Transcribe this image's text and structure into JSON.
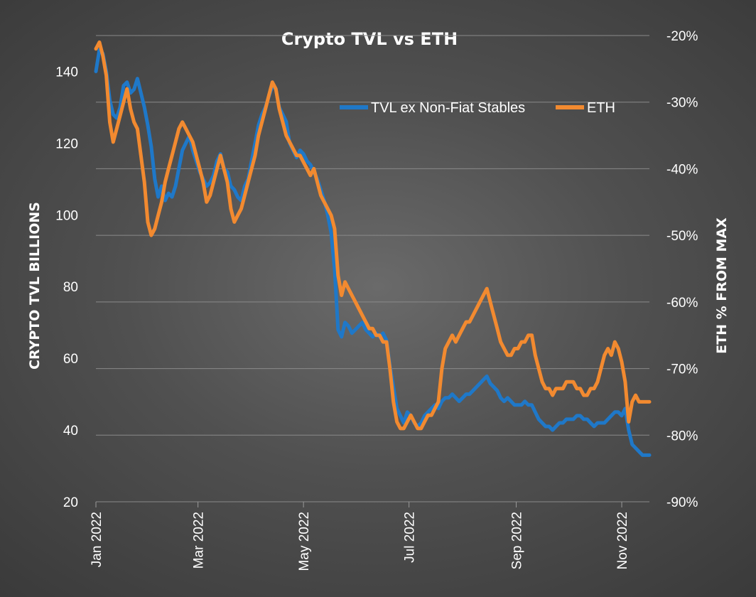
{
  "chart_data": {
    "type": "line",
    "title": "Crypto TVL vs ETH",
    "xlabel": "",
    "ylabel": "CRYPTO TVL BILLIONS",
    "y2label": "ETH % FROM MAX",
    "ylim": [
      20,
      150
    ],
    "y2lim": [
      -90,
      -20
    ],
    "yticks": [
      "140",
      "120",
      "100",
      "80",
      "60",
      "40",
      "20"
    ],
    "yticks_values": [
      140,
      120,
      100,
      80,
      60,
      40,
      20
    ],
    "y2ticks": [
      "-20%",
      "-30%",
      "-40%",
      "-50%",
      "-60%",
      "-70%",
      "-80%",
      "-90%"
    ],
    "y2ticks_values": [
      -20,
      -30,
      -40,
      -50,
      -60,
      -70,
      -80,
      -90
    ],
    "xticks": [
      "Jan 2022",
      "Mar 2022",
      "May 2022",
      "Jul 2022",
      "Sep 2022",
      "Nov 2022"
    ],
    "xticks_days": [
      0,
      59,
      120,
      181,
      243,
      304
    ],
    "grid": true,
    "legend_position": "top-right",
    "x_unit": "days since 2022-01-01",
    "series": [
      {
        "name": "TVL ex Non-Fiat Stables",
        "color": "#1f78c8",
        "axis": "left",
        "x": [
          0,
          2,
          4,
          6,
          8,
          10,
          12,
          14,
          16,
          18,
          20,
          22,
          24,
          26,
          28,
          30,
          32,
          34,
          36,
          38,
          40,
          42,
          44,
          46,
          48,
          50,
          52,
          54,
          56,
          58,
          60,
          62,
          64,
          66,
          68,
          70,
          72,
          74,
          76,
          78,
          80,
          82,
          84,
          86,
          88,
          90,
          92,
          94,
          96,
          98,
          100,
          102,
          104,
          106,
          108,
          110,
          112,
          114,
          116,
          118,
          120,
          122,
          124,
          126,
          128,
          130,
          132,
          134,
          136,
          138,
          140,
          142,
          144,
          146,
          148,
          150,
          152,
          154,
          156,
          158,
          160,
          162,
          164,
          166,
          168,
          170,
          172,
          174,
          176,
          178,
          180,
          182,
          184,
          186,
          188,
          190,
          192,
          194,
          196,
          198,
          200,
          202,
          204,
          206,
          208,
          210,
          212,
          214,
          216,
          218,
          220,
          222,
          224,
          226,
          228,
          230,
          232,
          234,
          236,
          238,
          240,
          242,
          244,
          246,
          248,
          250,
          252,
          254,
          256,
          258,
          260,
          262,
          264,
          266,
          268,
          270,
          272,
          274,
          276,
          278,
          280,
          282,
          284,
          286,
          288,
          290,
          292,
          294,
          296,
          298,
          300,
          302,
          304,
          306,
          308,
          310,
          312,
          314,
          316,
          318,
          320
        ],
        "values": [
          140,
          146,
          145,
          140,
          132,
          128,
          127,
          130,
          136,
          137,
          134,
          135,
          138,
          134,
          130,
          125,
          119,
          110,
          105,
          108,
          104,
          106,
          105,
          108,
          113,
          118,
          120,
          122,
          118,
          115,
          112,
          110,
          108,
          109,
          111,
          115,
          117,
          113,
          112,
          108,
          107,
          105,
          104,
          108,
          110,
          115,
          120,
          125,
          128,
          130,
          133,
          136,
          135,
          130,
          128,
          126,
          120,
          118,
          116,
          118,
          117,
          115,
          114,
          112,
          110,
          107,
          104,
          100,
          95,
          85,
          68,
          66,
          70,
          69,
          67,
          68,
          69,
          70,
          68,
          67,
          66,
          67,
          66,
          67,
          65,
          58,
          52,
          46,
          44,
          42,
          45,
          44,
          42,
          41,
          42,
          44,
          45,
          46,
          47,
          46,
          48,
          49,
          49,
          50,
          49,
          48,
          49,
          50,
          50,
          51,
          52,
          53,
          54,
          55,
          53,
          52,
          51,
          49,
          48,
          49,
          48,
          47,
          47,
          47,
          48,
          47,
          47,
          45,
          43,
          42,
          41,
          41,
          40,
          41,
          42,
          42,
          43,
          43,
          43,
          44,
          44,
          43,
          43,
          42,
          41,
          42,
          42,
          42,
          43,
          44,
          45,
          45,
          44,
          46,
          40,
          36,
          35,
          34,
          33,
          33,
          33
        ]
      },
      {
        "name": "ETH",
        "color": "#f28a30",
        "axis": "right",
        "x": [
          0,
          2,
          4,
          6,
          8,
          10,
          12,
          14,
          16,
          18,
          20,
          22,
          24,
          26,
          28,
          30,
          32,
          34,
          36,
          38,
          40,
          42,
          44,
          46,
          48,
          50,
          52,
          54,
          56,
          58,
          60,
          62,
          64,
          66,
          68,
          70,
          72,
          74,
          76,
          78,
          80,
          82,
          84,
          86,
          88,
          90,
          92,
          94,
          96,
          98,
          100,
          102,
          104,
          106,
          108,
          110,
          112,
          114,
          116,
          118,
          120,
          122,
          124,
          126,
          128,
          130,
          132,
          134,
          136,
          138,
          140,
          142,
          144,
          146,
          148,
          150,
          152,
          154,
          156,
          158,
          160,
          162,
          164,
          166,
          168,
          170,
          172,
          174,
          176,
          178,
          180,
          182,
          184,
          186,
          188,
          190,
          192,
          194,
          196,
          198,
          200,
          202,
          204,
          206,
          208,
          210,
          212,
          214,
          216,
          218,
          220,
          222,
          224,
          226,
          228,
          230,
          232,
          234,
          236,
          238,
          240,
          242,
          244,
          246,
          248,
          250,
          252,
          254,
          256,
          258,
          260,
          262,
          264,
          266,
          268,
          270,
          272,
          274,
          276,
          278,
          280,
          282,
          284,
          286,
          288,
          290,
          292,
          294,
          296,
          298,
          300,
          302,
          304,
          306,
          308,
          310,
          312,
          314,
          316,
          318,
          320
        ],
        "values": [
          -22,
          -21,
          -23,
          -26,
          -33,
          -36,
          -34,
          -32,
          -30,
          -28,
          -31,
          -33,
          -34,
          -38,
          -42,
          -48,
          -50,
          -49,
          -47,
          -45,
          -42,
          -40,
          -38,
          -36,
          -34,
          -33,
          -34,
          -35,
          -36,
          -38,
          -40,
          -42,
          -45,
          -44,
          -42,
          -40,
          -38,
          -40,
          -42,
          -46,
          -48,
          -47,
          -46,
          -44,
          -42,
          -40,
          -38,
          -35,
          -33,
          -31,
          -29,
          -27,
          -28,
          -31,
          -33,
          -35,
          -36,
          -37,
          -38,
          -38,
          -39,
          -40,
          -41,
          -40,
          -42,
          -44,
          -45,
          -46,
          -47,
          -49,
          -56,
          -59,
          -57,
          -58,
          -59,
          -60,
          -61,
          -62,
          -63,
          -64,
          -64,
          -65,
          -65,
          -66,
          -66,
          -70,
          -75,
          -78,
          -79,
          -79,
          -78,
          -77,
          -78,
          -79,
          -79,
          -78,
          -77,
          -77,
          -76,
          -75,
          -70,
          -67,
          -66,
          -65,
          -66,
          -65,
          -64,
          -63,
          -63,
          -62,
          -61,
          -60,
          -59,
          -58,
          -60,
          -62,
          -64,
          -66,
          -67,
          -68,
          -68,
          -67,
          -67,
          -66,
          -66,
          -65,
          -65,
          -68,
          -70,
          -72,
          -73,
          -73,
          -74,
          -73,
          -73,
          -73,
          -72,
          -72,
          -72,
          -73,
          -73,
          -74,
          -74,
          -73,
          -73,
          -72,
          -70,
          -68,
          -67,
          -68,
          -66,
          -67,
          -69,
          -72,
          -78,
          -75,
          -74,
          -75,
          -75,
          -75,
          -75
        ]
      }
    ]
  }
}
